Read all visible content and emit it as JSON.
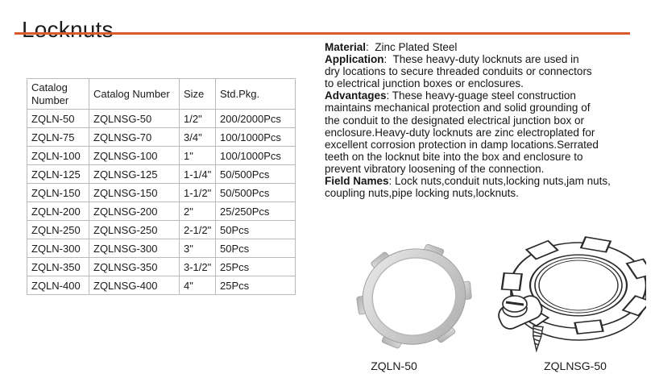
{
  "page": {
    "title": "Locknuts"
  },
  "colors": {
    "accent": "#d95b2b",
    "table_border": "#b9b9b9",
    "text": "#1c1c1c"
  },
  "table": {
    "headers": [
      "Catalog Number",
      "Catalog Number",
      "Size",
      "Std.Pkg."
    ],
    "rows": [
      [
        "ZQLN-50",
        "ZQLNSG-50",
        "1/2\"",
        "200/2000Pcs"
      ],
      [
        "ZQLN-75",
        "ZQLNSG-70",
        "3/4\"",
        "100/1000Pcs"
      ],
      [
        "ZQLN-100",
        "ZQLNSG-100",
        "1\"",
        "100/1000Pcs"
      ],
      [
        "ZQLN-125",
        "ZQLNSG-125",
        "1-1/4\"",
        "50/500Pcs"
      ],
      [
        "ZQLN-150",
        "ZQLNSG-150",
        "1-1/2\"",
        "50/500Pcs"
      ],
      [
        "ZQLN-200",
        "ZQLNSG-200",
        "2\"",
        "25/250Pcs"
      ],
      [
        "ZQLN-250",
        "ZQLNSG-250",
        "2-1/2\"",
        "50Pcs"
      ],
      [
        "ZQLN-300",
        "ZQLNSG-300",
        "3\"",
        "50Pcs"
      ],
      [
        "ZQLN-350",
        "ZQLNSG-350",
        "3-1/2\"",
        "25Pcs"
      ],
      [
        "ZQLN-400",
        "ZQLNSG-400",
        "4\"",
        "25Pcs"
      ]
    ]
  },
  "details": [
    {
      "label": "Material",
      "lines": [
        ":  Zinc Plated Steel"
      ]
    },
    {
      "label": "Application",
      "lines": [
        ":  These heavy-duty locknuts are used in",
        "dry locations to secure threaded conduits or connectors",
        "to electrical junction boxes or enclosures."
      ]
    },
    {
      "label": "Advantages",
      "lines": [
        ": These heavy-guage steel construction",
        "maintains mechanical protection and solid grounding of",
        "the conduit to the designated electrical junction box or",
        "enclosure.Heavy-duty locknuts are zinc electroplated for",
        "excellent corrosion protection in damp locations.Serrated",
        "teeth on the locknut bite into the box and enclosure to",
        "prevent vibratory loosening of the connection."
      ]
    },
    {
      "label": "Field Names",
      "lines": [
        ": Lock nuts,conduit nuts,locking nuts,jam nuts,",
        "coupling nuts,pipe locking nuts,locknuts."
      ]
    }
  ],
  "figures": [
    {
      "label": "ZQLN-50"
    },
    {
      "label": "ZQLNSG-50"
    }
  ]
}
